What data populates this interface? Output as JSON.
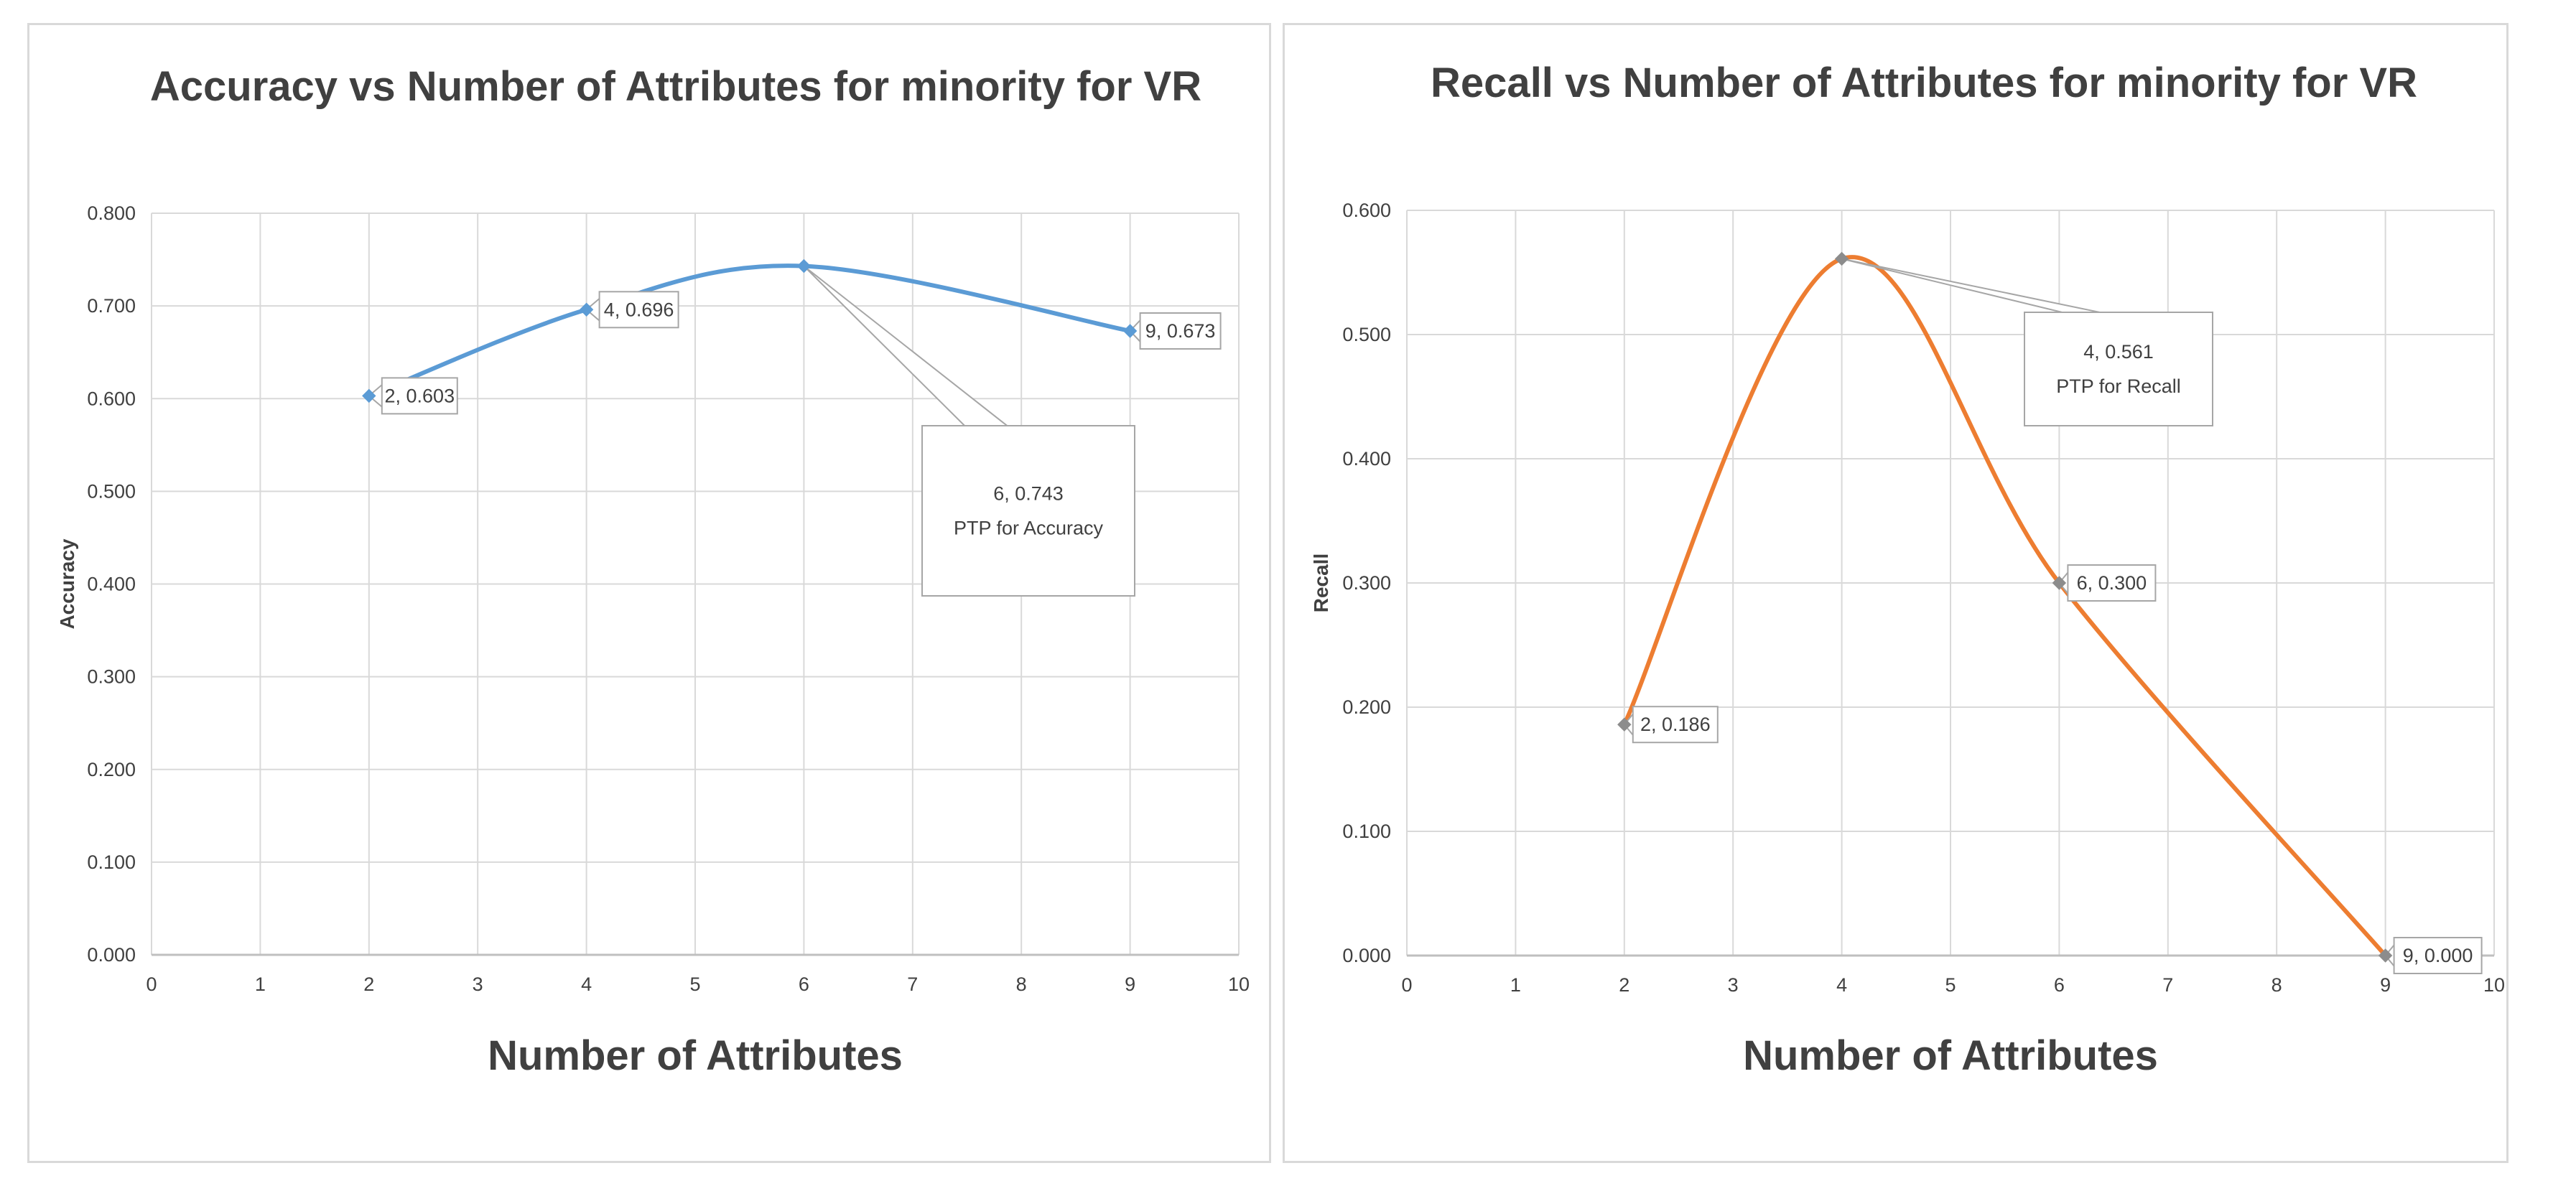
{
  "chart_data": [
    {
      "type": "line",
      "title": "Accuracy vs Number of Attributes for minority for VR",
      "xlabel": "Number of Attributes",
      "ylabel": "Accuracy",
      "xlim": [
        0,
        10
      ],
      "ylim": [
        0,
        0.8
      ],
      "x_ticks": [
        "0",
        "1",
        "2",
        "3",
        "4",
        "5",
        "6",
        "7",
        "8",
        "9",
        "10"
      ],
      "y_ticks": [
        "0.000",
        "0.100",
        "0.200",
        "0.300",
        "0.400",
        "0.500",
        "0.600",
        "0.700",
        "0.800"
      ],
      "series": [
        {
          "name": "Accuracy",
          "color": "#5b9bd5",
          "x": [
            2,
            4,
            6,
            9
          ],
          "y": [
            0.603,
            0.696,
            0.743,
            0.673
          ]
        }
      ],
      "data_labels": [
        {
          "point": 0,
          "lines": [
            "2, 0.603"
          ]
        },
        {
          "point": 1,
          "lines": [
            "4, 0.696"
          ]
        },
        {
          "point": 2,
          "lines": [
            "6, 0.743",
            "PTP for Accuracy"
          ]
        },
        {
          "point": 3,
          "lines": [
            "9, 0.673"
          ]
        }
      ],
      "grid": true
    },
    {
      "type": "line",
      "title": "Recall vs Number of Attributes for minority for VR",
      "xlabel": "Number of Attributes",
      "ylabel": "Recall",
      "xlim": [
        0,
        10
      ],
      "ylim": [
        0,
        0.6
      ],
      "x_ticks": [
        "0",
        "1",
        "2",
        "3",
        "4",
        "5",
        "6",
        "7",
        "8",
        "9",
        "10"
      ],
      "y_ticks": [
        "0.000",
        "0.100",
        "0.200",
        "0.300",
        "0.400",
        "0.500",
        "0.600"
      ],
      "series": [
        {
          "name": "Recall",
          "color": "#ed7d31",
          "x": [
            2,
            4,
            6,
            9
          ],
          "y": [
            0.186,
            0.561,
            0.3,
            0.0
          ]
        }
      ],
      "data_labels": [
        {
          "point": 0,
          "lines": [
            "2, 0.186"
          ]
        },
        {
          "point": 1,
          "lines": [
            "4, 0.561",
            "PTP for Recall"
          ]
        },
        {
          "point": 2,
          "lines": [
            "6, 0.300"
          ]
        },
        {
          "point": 3,
          "lines": [
            "9, 0.000"
          ]
        }
      ],
      "grid": true
    }
  ]
}
